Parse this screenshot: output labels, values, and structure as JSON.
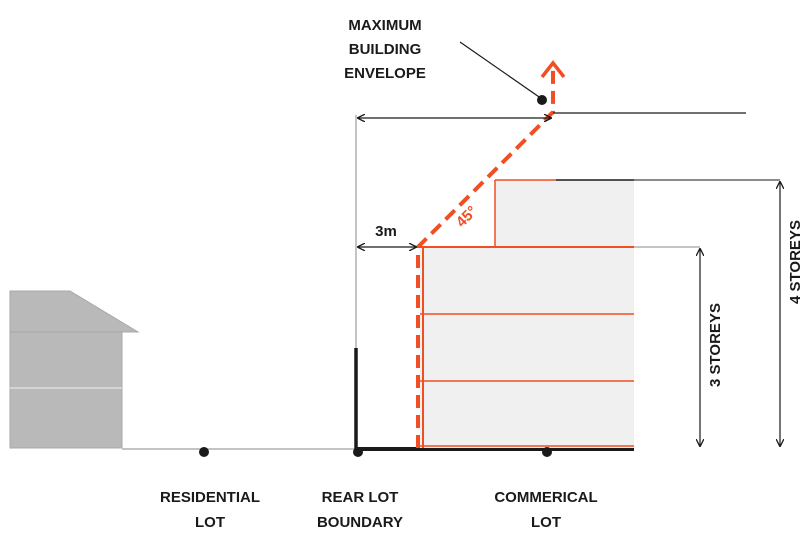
{
  "labels": {
    "envelope": [
      "MAXIMUM",
      "BUILDING",
      "ENVELOPE"
    ],
    "setback": "3m",
    "angle": "45°",
    "three_storeys": "3 STOREYS",
    "four_storeys": "4 STOREYS",
    "residential": [
      "RESIDENTIAL",
      "LOT"
    ],
    "rear_boundary": [
      "REAR LOT",
      "BOUNDARY"
    ],
    "commercial": [
      "COMMERICAL",
      "LOT"
    ]
  },
  "colors": {
    "accent": "#f04e23",
    "building_fill": "#f0f0f0",
    "house_fill": "#b9b9b9",
    "line_dark": "#1a1a1a",
    "line_grey": "#b0b0b0"
  }
}
